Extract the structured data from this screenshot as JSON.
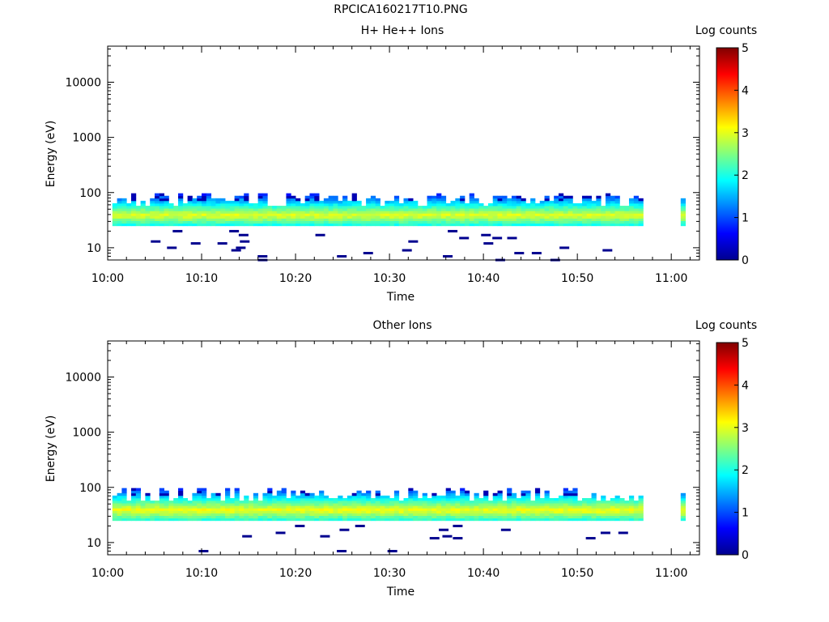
{
  "page_title": "RPCICA160217T10.PNG",
  "colormap": [
    "#00008f",
    "#0000ff",
    "#0080ff",
    "#00ffff",
    "#80ff80",
    "#ffff00",
    "#ff8000",
    "#ff0000",
    "#800000"
  ],
  "chart_data": [
    {
      "type": "heatmap",
      "title": "H+ He++ Ions",
      "xlabel": "Time",
      "ylabel": "Energy (eV)",
      "y_scale": "log",
      "ylim": [
        6,
        45000
      ],
      "xlim": [
        "10:00",
        "11:03"
      ],
      "x_ticks": [
        "10:00",
        "10:10",
        "10:20",
        "10:30",
        "10:40",
        "10:50",
        "11:00"
      ],
      "y_ticks": [
        "10",
        "100",
        "1000",
        "10000"
      ],
      "colorbar": {
        "label": "Log counts",
        "range": [
          0,
          5
        ],
        "ticks": [
          "0",
          "1",
          "2",
          "3",
          "4",
          "5"
        ]
      },
      "data_gap": [
        "10:57",
        "11:01"
      ],
      "core_band_eV": [
        25,
        95
      ],
      "peak_band_eV": [
        32,
        42
      ],
      "typical_peak_log_counts": 3.0,
      "scattered_low_count_energies_eV": [
        6,
        7,
        8,
        9,
        10,
        12,
        13,
        15,
        17,
        20
      ]
    },
    {
      "type": "heatmap",
      "title": "Other Ions",
      "xlabel": "Time",
      "ylabel": "Energy (eV)",
      "y_scale": "log",
      "ylim": [
        6,
        45000
      ],
      "xlim": [
        "10:00",
        "11:03"
      ],
      "x_ticks": [
        "10:00",
        "10:10",
        "10:20",
        "10:30",
        "10:40",
        "10:50",
        "11:00"
      ],
      "y_ticks": [
        "10",
        "100",
        "1000",
        "10000"
      ],
      "colorbar": {
        "label": "Log counts",
        "range": [
          0,
          5
        ],
        "ticks": [
          "0",
          "1",
          "2",
          "3",
          "4",
          "5"
        ]
      },
      "data_gap": [
        "10:57",
        "11:01"
      ],
      "core_band_eV": [
        25,
        95
      ],
      "peak_band_eV": [
        32,
        42
      ],
      "typical_peak_log_counts": 3.1,
      "scattered_low_count_energies_eV": [
        7,
        12,
        13,
        15,
        17,
        20
      ]
    }
  ]
}
